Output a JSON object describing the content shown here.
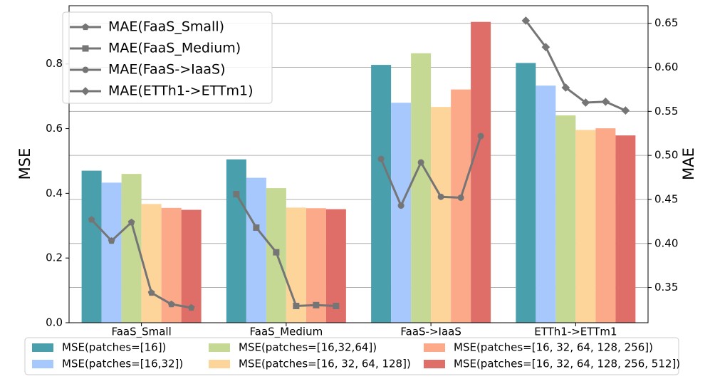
{
  "chart_data": {
    "type": "bar",
    "categories": [
      "FaaS_Small",
      "FaaS_Medium",
      "FaaS->IaaS",
      "ETTh1->ETTm1"
    ],
    "ylabel": "MSE",
    "y2label": "MAE",
    "ylim": [
      0,
      0.98
    ],
    "yticks": [
      {
        "value": 0,
        "label": "0.0"
      },
      0.2,
      0.4,
      0.6,
      0.8
    ],
    "y2lim": [
      0.31,
      0.67
    ],
    "y2ticks": [
      0.35,
      {
        "value": 0.4,
        "label": "0.40"
      },
      0.45,
      {
        "value": 0.5,
        "label": "0.50"
      },
      0.55,
      {
        "value": 0.6,
        "label": "0.60"
      },
      0.65
    ],
    "grid": "y2",
    "series": [
      {
        "name": "MSE(patches=[16])",
        "color": "#4a9fad",
        "values": [
          0.47,
          0.505,
          0.797,
          0.803
        ]
      },
      {
        "name": "MSE(patches=[16,32])",
        "color": "#a6c8fd",
        "values": [
          0.433,
          0.448,
          0.68,
          0.733
        ]
      },
      {
        "name": "MSE(patches=[16,32,64])",
        "color": "#c5d994",
        "values": [
          0.46,
          0.416,
          0.833,
          0.641
        ]
      },
      {
        "name": "MSE(patches=[16, 32, 64, 128])",
        "color": "#fdd59b",
        "values": [
          0.367,
          0.356,
          0.667,
          0.596
        ]
      },
      {
        "name": "MSE(patches=[16, 32, 64, 128, 256])",
        "color": "#fca98a",
        "values": [
          0.355,
          0.354,
          0.721,
          0.601
        ]
      },
      {
        "name": "MSE(patches=[16, 32, 64, 128, 256, 512])",
        "color": "#e06e68",
        "values": [
          0.349,
          0.351,
          0.93,
          0.579
        ]
      }
    ],
    "line_series": [
      {
        "name": "MAE(FaaS_Small)",
        "color": "#757575",
        "marker": "pentagon",
        "axis": "y2",
        "values": [
          0.427,
          0.403,
          0.424,
          0.344,
          0.331,
          0.327
        ]
      },
      {
        "name": "MAE(FaaS_Medium)",
        "color": "#757575",
        "marker": "square",
        "axis": "y2",
        "values": [
          0.456,
          0.418,
          0.39,
          0.329,
          0.33,
          0.329
        ]
      },
      {
        "name": "MAE(FaaS->IaaS)",
        "color": "#757575",
        "marker": "circle",
        "axis": "y2",
        "values": [
          0.496,
          0.443,
          0.492,
          0.453,
          0.452,
          0.522
        ]
      },
      {
        "name": "MAE(ETTh1->ETTm1)",
        "color": "#757575",
        "marker": "diamond",
        "axis": "y2",
        "values": [
          0.653,
          0.623,
          0.577,
          0.56,
          0.561,
          0.551
        ]
      }
    ]
  }
}
